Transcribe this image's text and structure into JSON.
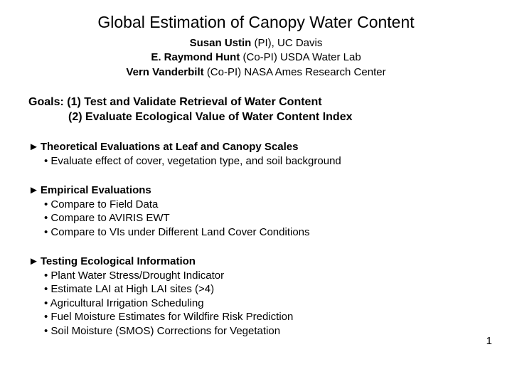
{
  "title": "Global Estimation of Canopy Water Content",
  "authors": [
    {
      "name": "Susan Ustin",
      "role": "(PI), UC Davis"
    },
    {
      "name": "E. Raymond Hunt",
      "role": "(Co-PI) USDA Water Lab"
    },
    {
      "name": "Vern Vanderbilt",
      "role": "(Co-PI) NASA Ames Research Center"
    }
  ],
  "goals": {
    "prefix": "Goals:",
    "line1": "(1) Test and Validate Retrieval of Water Content",
    "line2": "(2) Evaluate Ecological Value of Water Content Index"
  },
  "sections": [
    {
      "head": "Theoretical Evaluations at Leaf and Canopy Scales",
      "items": [
        "Evaluate effect of cover, vegetation type, and soil background"
      ]
    },
    {
      "head": "Empirical Evaluations",
      "items": [
        "Compare to Field Data",
        "Compare to AVIRIS EWT",
        "Compare to VIs under Different Land Cover Conditions"
      ]
    },
    {
      "head": "Testing Ecological Information",
      "items": [
        "Plant Water Stress/Drought Indicator",
        "Estimate LAI at High LAI sites (>4)",
        "Agricultural Irrigation Scheduling",
        "Fuel Moisture Estimates for Wildfire Risk Prediction",
        "Soil Moisture (SMOS) Corrections for Vegetation"
      ]
    }
  ],
  "pageNumber": "1",
  "style": {
    "background": "#ffffff",
    "text": "#000000",
    "triangle": "►"
  }
}
